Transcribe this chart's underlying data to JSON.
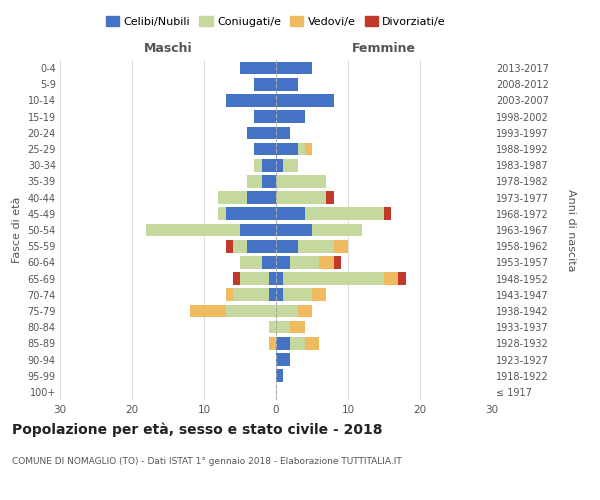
{
  "age_groups": [
    "100+",
    "95-99",
    "90-94",
    "85-89",
    "80-84",
    "75-79",
    "70-74",
    "65-69",
    "60-64",
    "55-59",
    "50-54",
    "45-49",
    "40-44",
    "35-39",
    "30-34",
    "25-29",
    "20-24",
    "15-19",
    "10-14",
    "5-9",
    "0-4"
  ],
  "birth_years": [
    "≤ 1917",
    "1918-1922",
    "1923-1927",
    "1928-1932",
    "1933-1937",
    "1938-1942",
    "1943-1947",
    "1948-1952",
    "1953-1957",
    "1958-1962",
    "1963-1967",
    "1968-1972",
    "1973-1977",
    "1978-1982",
    "1983-1987",
    "1988-1992",
    "1993-1997",
    "1998-2002",
    "2003-2007",
    "2008-2012",
    "2013-2017"
  ],
  "colors": {
    "celibi": "#4472C4",
    "coniugati": "#c5d89d",
    "vedovi": "#f0bb60",
    "divorziati": "#c0392b"
  },
  "maschi": {
    "celibi": [
      0,
      0,
      0,
      0,
      0,
      0,
      1,
      1,
      2,
      4,
      5,
      7,
      4,
      2,
      2,
      3,
      4,
      3,
      7,
      3,
      5
    ],
    "coniugati": [
      0,
      0,
      0,
      0,
      1,
      7,
      5,
      4,
      3,
      2,
      13,
      1,
      4,
      2,
      1,
      0,
      0,
      0,
      0,
      0,
      0
    ],
    "vedovi": [
      0,
      0,
      0,
      1,
      0,
      5,
      1,
      0,
      0,
      0,
      0,
      0,
      0,
      0,
      0,
      0,
      0,
      0,
      0,
      0,
      0
    ],
    "divorziati": [
      0,
      0,
      0,
      0,
      0,
      0,
      0,
      1,
      0,
      1,
      0,
      0,
      0,
      0,
      0,
      0,
      0,
      0,
      0,
      0,
      0
    ]
  },
  "femmine": {
    "celibi": [
      0,
      1,
      2,
      2,
      0,
      0,
      1,
      1,
      2,
      3,
      5,
      4,
      0,
      0,
      1,
      3,
      2,
      4,
      8,
      3,
      5
    ],
    "coniugati": [
      0,
      0,
      0,
      2,
      2,
      3,
      4,
      14,
      4,
      5,
      7,
      11,
      7,
      7,
      2,
      1,
      0,
      0,
      0,
      0,
      0
    ],
    "vedovi": [
      0,
      0,
      0,
      2,
      2,
      2,
      2,
      2,
      2,
      2,
      0,
      0,
      0,
      0,
      0,
      1,
      0,
      0,
      0,
      0,
      0
    ],
    "divorziati": [
      0,
      0,
      0,
      0,
      0,
      0,
      0,
      1,
      1,
      0,
      0,
      1,
      1,
      0,
      0,
      0,
      0,
      0,
      0,
      0,
      0
    ]
  },
  "xlim": 30,
  "title": "Popolazione per età, sesso e stato civile - 2018",
  "subtitle": "COMUNE DI NOMAGLIO (TO) - Dati ISTAT 1° gennaio 2018 - Elaborazione TUTTITALIA.IT",
  "ylabel_left": "Fasce di età",
  "ylabel_right": "Anni di nascita",
  "xlabel_left": "Maschi",
  "xlabel_right": "Femmine",
  "grid_color": "#cccccc",
  "text_color": "#555555",
  "title_color": "#222222"
}
